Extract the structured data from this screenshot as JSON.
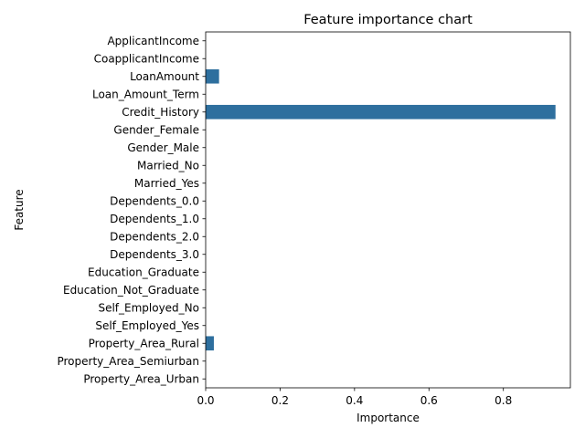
{
  "chart_data": {
    "type": "bar",
    "orientation": "horizontal",
    "title": "Feature importance chart",
    "xlabel": "Importance",
    "ylabel": "Feature",
    "xlim": [
      0,
      0.98
    ],
    "xticks": [
      0.0,
      0.2,
      0.4,
      0.6,
      0.8
    ],
    "xtick_labels": [
      "0.0",
      "0.2",
      "0.4",
      "0.6",
      "0.8"
    ],
    "grid": false,
    "bar_color": "#2e6f9e",
    "categories": [
      "ApplicantIncome",
      "CoapplicantIncome",
      "LoanAmount",
      "Loan_Amount_Term",
      "Credit_History",
      "Gender_Female",
      "Gender_Male",
      "Married_No",
      "Married_Yes",
      "Dependents_0.0",
      "Dependents_1.0",
      "Dependents_2.0",
      "Dependents_3.0",
      "Education_Graduate",
      "Education_Not_Graduate",
      "Self_Employed_No",
      "Self_Employed_Yes",
      "Property_Area_Rural",
      "Property_Area_Semiurban",
      "Property_Area_Urban"
    ],
    "values": [
      0,
      0,
      0.036,
      0,
      0.94,
      0,
      0,
      0,
      0,
      0,
      0,
      0,
      0,
      0,
      0,
      0,
      0,
      0.022,
      0,
      0
    ]
  }
}
